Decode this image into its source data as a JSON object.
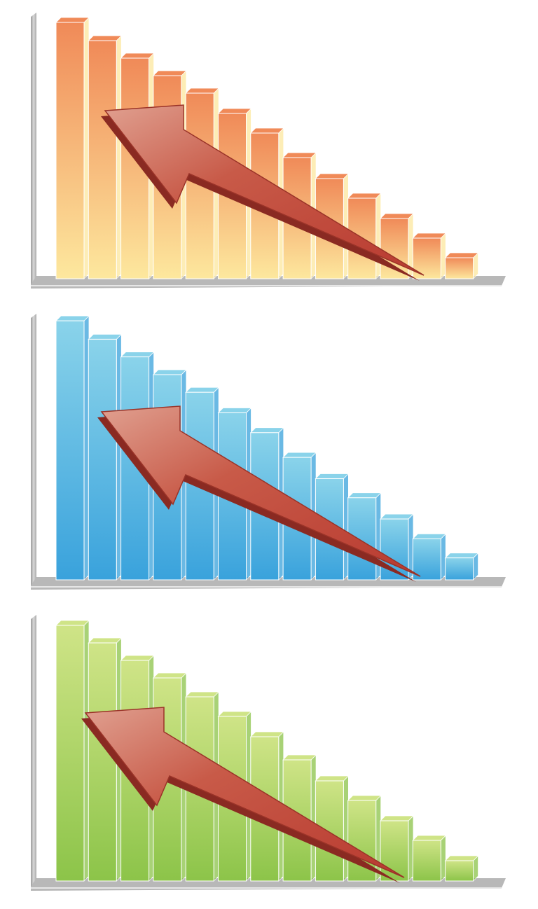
{
  "chart_data": [
    {
      "type": "bar",
      "values": [
        366,
        340,
        315,
        290,
        265,
        236,
        208,
        173,
        143,
        115,
        86,
        58,
        30
      ],
      "color": [
        "#f08a58",
        "#fde89e"
      ],
      "ylim": [
        0,
        380
      ]
    },
    {
      "type": "bar",
      "values": [
        366,
        340,
        315,
        290,
        265,
        236,
        208,
        173,
        143,
        116,
        86,
        58,
        31
      ],
      "color": [
        "#8ad3ea",
        "#39a2dc"
      ],
      "ylim": [
        0,
        376
      ]
    },
    {
      "type": "bar",
      "values": [
        365,
        340,
        315,
        290,
        263,
        235,
        206,
        173,
        143,
        115,
        86,
        58,
        29
      ],
      "color": [
        "#cfe487",
        "#8cc449"
      ],
      "ylim": [
        0,
        380
      ]
    }
  ]
}
